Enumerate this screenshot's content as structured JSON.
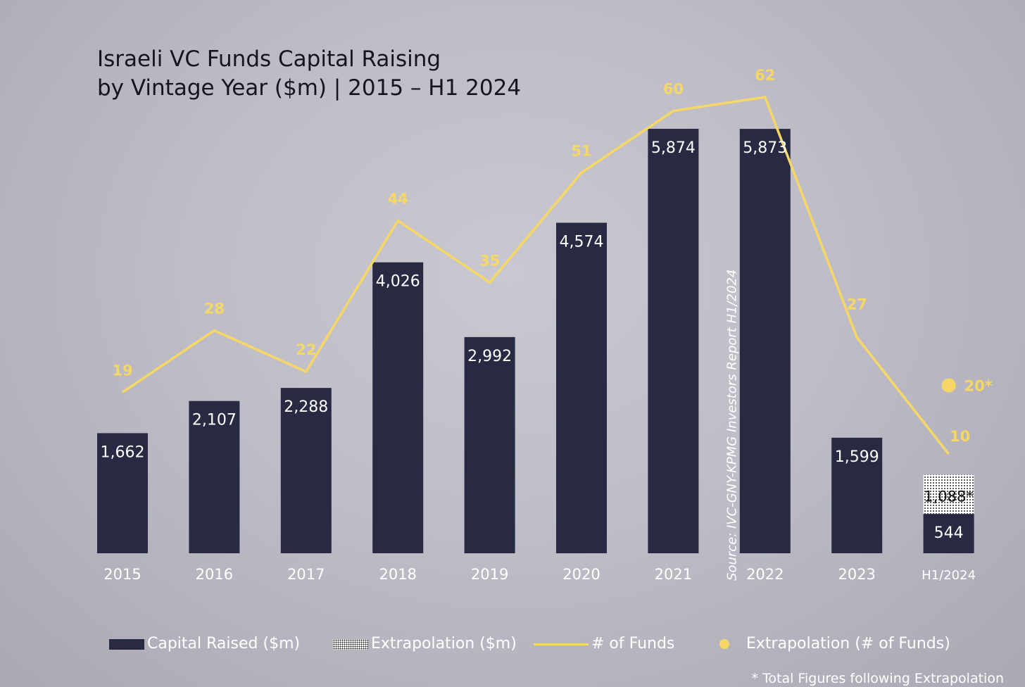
{
  "title": {
    "line1": "Israeli VC Funds Capital Raising",
    "line2": "by Vintage Year ($m) | 2015  – H1 2024"
  },
  "source": "Source: IVC-GNY-KPMG Investors Report H1/2024",
  "legend": {
    "capital": "Capital Raised ($m)",
    "extrapolation": "Extrapolation ($m)",
    "funds": "# of Funds",
    "funds_extrapolation": "Extrapolation (# of Funds)"
  },
  "footnote": "* Total Figures following Extrapolation",
  "colors": {
    "bar": "#272a42",
    "line": "#f6d766",
    "axis_text": "#ffffff",
    "title_text": "#15151f"
  },
  "chart_data": {
    "type": "bar+line",
    "title": "Israeli VC Funds Capital Raising by Vintage Year ($m) | 2015 – H1 2024",
    "categories": [
      "2015",
      "2016",
      "2017",
      "2018",
      "2019",
      "2020",
      "2021",
      "2022",
      "2023",
      "H1/2024"
    ],
    "series": [
      {
        "name": "Capital Raised ($m)",
        "type": "bar",
        "values": [
          1662,
          2107,
          2288,
          4026,
          2992,
          4574,
          5874,
          5873,
          1599,
          544
        ],
        "labels": [
          "1,662",
          "2,107",
          "2,288",
          "4,026",
          "2,992",
          "4,574",
          "5,874",
          "5,873",
          "1,599",
          "544"
        ]
      },
      {
        "name": "Extrapolation ($m)",
        "type": "bar-stacked",
        "category": "H1/2024",
        "total": 1088,
        "label": "1,088*"
      },
      {
        "name": "# of Funds",
        "type": "line",
        "values": [
          19,
          28,
          22,
          44,
          35,
          51,
          60,
          62,
          27,
          10
        ],
        "labels": [
          "19",
          "28",
          "22",
          "44",
          "35",
          "51",
          "60",
          "62",
          "27",
          "10"
        ]
      },
      {
        "name": "Extrapolation (# of Funds)",
        "type": "point",
        "category": "H1/2024",
        "value": 20,
        "label": "20*"
      }
    ],
    "xlabel": "",
    "ylabel": ""
  }
}
